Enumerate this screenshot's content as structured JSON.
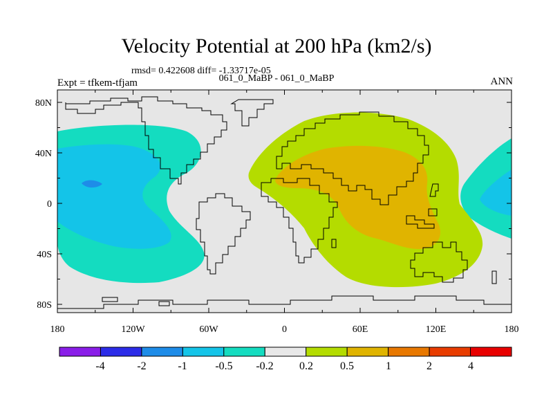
{
  "title": "Velocity Potential at 200 hPa (km2/s)",
  "subtitle": {
    "rmsd": "rmsd= 0.422608 diff= -1.33717e-05",
    "left": "Expt = tfkem-tfjam",
    "center": "061_0_MaBP - 061_0_MaBP",
    "right": "ANN"
  },
  "axes": {
    "x_ticks": [
      "180",
      "120W",
      "60W",
      "0",
      "60E",
      "120E",
      "180"
    ],
    "y_ticks": [
      "80N",
      "40N",
      "0",
      "40S",
      "80S"
    ]
  },
  "colorbar": {
    "labels": [
      "-4",
      "-2",
      "-1",
      "-0.5",
      "-0.2",
      "0.2",
      "0.5",
      "1",
      "2",
      "4"
    ],
    "colors": [
      "#8a1ee8",
      "#2c2ce8",
      "#1e8ce8",
      "#14c4e8",
      "#14dcc0",
      "#e8e8e8",
      "#b4dc00",
      "#e0b400",
      "#e87800",
      "#e83c00",
      "#e80000"
    ]
  },
  "fill_colors": {
    "background": "#e6e6e6",
    "neg_low": "#14dcc0",
    "neg_mid": "#14c4e8",
    "neg_high": "#1e8ce8",
    "pos_low": "#b4dc00",
    "pos_mid": "#e0b400"
  }
}
